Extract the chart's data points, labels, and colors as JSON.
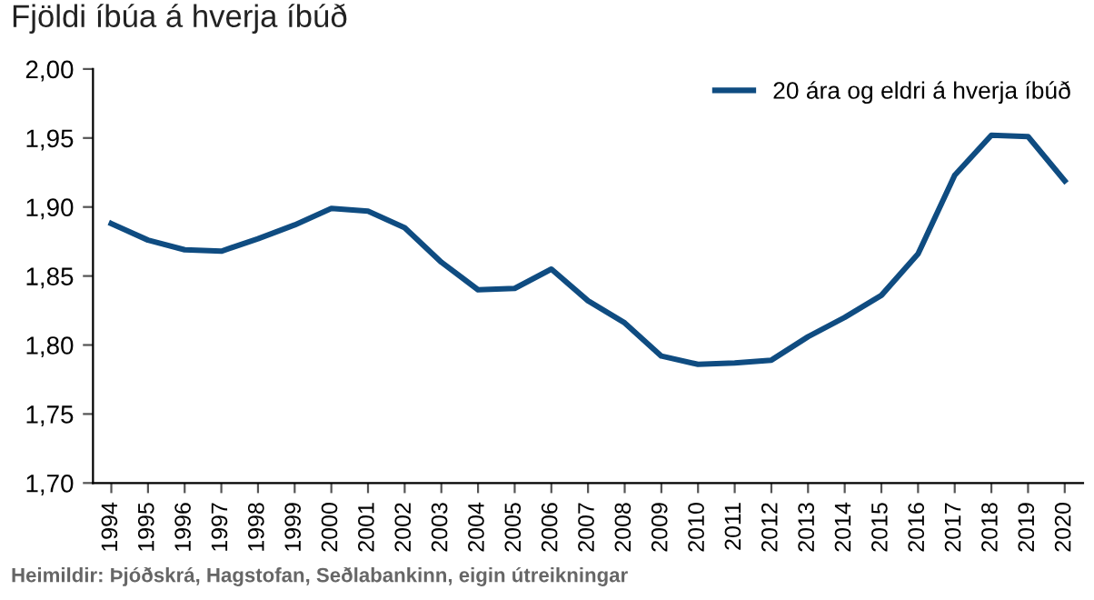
{
  "chart_data": {
    "type": "line",
    "title": "Fjöldi íbúa á hverja íbúð",
    "categories": [
      "1994",
      "1995",
      "1996",
      "1997",
      "1998",
      "1999",
      "2000",
      "2001",
      "2002",
      "2003",
      "2004",
      "2005",
      "2006",
      "2007",
      "2008",
      "2009",
      "2010",
      "2011",
      "2012",
      "2013",
      "2014",
      "2015",
      "2016",
      "2017",
      "2018",
      "2019",
      "2020"
    ],
    "series": [
      {
        "name": "20 ára og eldri á hverja íbúð",
        "color": "#0f4c81",
        "values": [
          1.888,
          1.876,
          1.869,
          1.868,
          1.877,
          1.887,
          1.899,
          1.897,
          1.885,
          1.86,
          1.84,
          1.841,
          1.855,
          1.832,
          1.816,
          1.792,
          1.786,
          1.787,
          1.789,
          1.806,
          1.82,
          1.836,
          1.866,
          1.923,
          1.952,
          1.951,
          1.919
        ]
      }
    ],
    "ylim": [
      1.7,
      2.0
    ],
    "yticks": [
      {
        "value": 1.7,
        "label": "1,70"
      },
      {
        "value": 1.75,
        "label": "1,75"
      },
      {
        "value": 1.8,
        "label": "1,80"
      },
      {
        "value": 1.85,
        "label": "1,85"
      },
      {
        "value": 1.9,
        "label": "1,90"
      },
      {
        "value": 1.95,
        "label": "1,95"
      },
      {
        "value": 2.0,
        "label": "2,00"
      }
    ],
    "grid": false,
    "legend": "top right",
    "marker": "none",
    "line_style": "solid",
    "annotations": [
      "Heimildir: Þjóðskrá, Hagstofan, Seðlabankinn, eigin útreikningar"
    ]
  }
}
